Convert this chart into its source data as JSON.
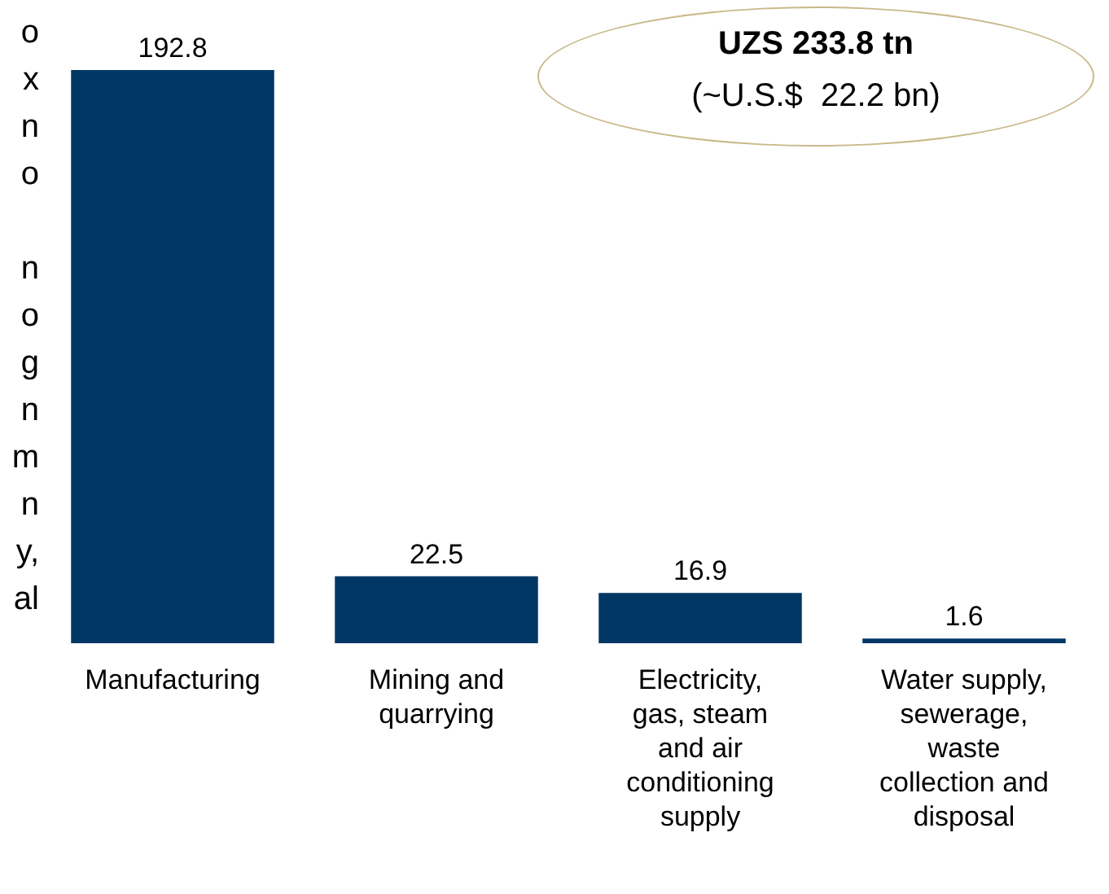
{
  "chart_data": {
    "type": "bar",
    "categories": [
      "Manufacturing",
      "Mining and\nquarrying",
      "Electricity,\ngas, steam\nand air\nconditioning\nsupply",
      "Water supply,\nsewerage,\nwaste\ncollection and\ndisposal"
    ],
    "values": [
      192.8,
      22.5,
      16.9,
      1.6
    ],
    "color": "#003764",
    "data_labels": true,
    "annotations": [
      "UZS 233.8 tn",
      "(~U.S.$  22.2 bn)",
      "o\nx\nn\no\n\nn\no\ng\nn\nm\nn\ny,\nal"
    ]
  }
}
